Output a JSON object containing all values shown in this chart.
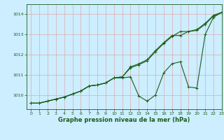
{
  "title": "Graphe pression niveau de la mer (hPa)",
  "background_color": "#cceeff",
  "grid_color": "#aacccc",
  "line_color": "#1a5c1a",
  "xlim": [
    -0.5,
    23
  ],
  "ylim": [
    1009.3,
    1014.5
  ],
  "yticks": [
    1010,
    1011,
    1012,
    1013,
    1014
  ],
  "xticks": [
    0,
    1,
    2,
    3,
    4,
    5,
    6,
    7,
    8,
    9,
    10,
    11,
    12,
    13,
    14,
    15,
    16,
    17,
    18,
    19,
    20,
    21,
    22,
    23
  ],
  "series1": [
    1009.6,
    1009.6,
    1009.7,
    1009.8,
    1009.9,
    1010.05,
    1010.2,
    1010.45,
    1010.5,
    1010.6,
    1010.85,
    1010.9,
    1011.4,
    1011.55,
    1011.75,
    1012.2,
    1012.6,
    1012.95,
    1012.95,
    1013.15,
    1013.25,
    1013.55,
    1013.95,
    1014.1
  ],
  "series2": [
    1009.6,
    1009.6,
    1009.7,
    1009.8,
    1009.9,
    1010.05,
    1010.2,
    1010.45,
    1010.5,
    1010.6,
    1010.85,
    1010.85,
    1010.9,
    1009.95,
    1009.7,
    1010.0,
    1011.1,
    1011.55,
    1011.65,
    1010.4,
    1010.35,
    1013.0,
    1013.85,
    1014.1
  ],
  "series3": [
    1009.6,
    1009.6,
    1009.7,
    1009.8,
    1009.9,
    1010.05,
    1010.2,
    1010.45,
    1010.5,
    1010.6,
    1010.85,
    1010.9,
    1011.35,
    1011.5,
    1011.7,
    1012.15,
    1012.55,
    1012.9,
    1013.15,
    1013.15,
    1013.2,
    1013.5,
    1013.92,
    1014.08
  ]
}
